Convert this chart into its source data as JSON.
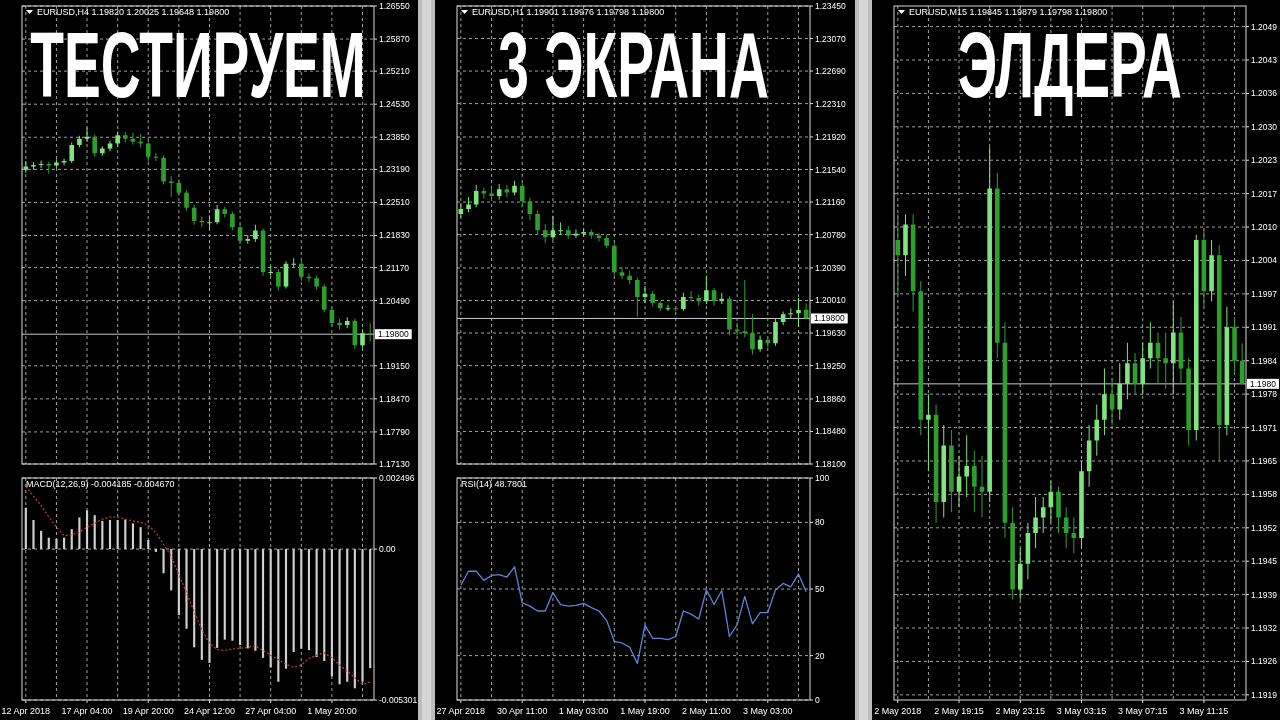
{
  "chart_data": [
    {
      "type": "candlestick",
      "title": "EURUSD,H4 1.19820 1.20025 1.19648 1.19800",
      "annotations": [
        "ТЕСТИРУЕМ"
      ],
      "categories": [
        null,
        null,
        null,
        null,
        null,
        null,
        null,
        null,
        null,
        null,
        null,
        null,
        null,
        null,
        null,
        null,
        null,
        null,
        null,
        null,
        null,
        null,
        null,
        null,
        null,
        null,
        null,
        null,
        null,
        null,
        null,
        null,
        null,
        null,
        null,
        null,
        null,
        null,
        null,
        null,
        null,
        null,
        null,
        null,
        null,
        null
      ],
      "ohlc": [
        [
          1.2318,
          1.2336,
          1.2312,
          1.2325
        ],
        [
          1.2325,
          1.2334,
          1.2318,
          1.2328
        ],
        [
          1.2328,
          1.2337,
          1.2322,
          1.233
        ],
        [
          1.233,
          1.2335,
          1.231,
          1.2327
        ],
        [
          1.2327,
          1.234,
          1.2322,
          1.2333
        ],
        [
          1.2333,
          1.2341,
          1.2327,
          1.2336
        ],
        [
          1.2336,
          1.2374,
          1.2332,
          1.2369
        ],
        [
          1.2369,
          1.2388,
          1.2364,
          1.2382
        ],
        [
          1.2382,
          1.2405,
          1.2376,
          1.2386
        ],
        [
          1.2386,
          1.239,
          1.2345,
          1.2352
        ],
        [
          1.2352,
          1.2366,
          1.2347,
          1.2362
        ],
        [
          1.2362,
          1.2378,
          1.2356,
          1.2372
        ],
        [
          1.2372,
          1.2397,
          1.2366,
          1.2389
        ],
        [
          1.2389,
          1.2396,
          1.2375,
          1.2382
        ],
        [
          1.2382,
          1.2395,
          1.237,
          1.2376
        ],
        [
          1.2376,
          1.2392,
          1.2364,
          1.2372
        ],
        [
          1.2372,
          1.2378,
          1.2335,
          1.2345
        ],
        [
          1.2345,
          1.2352,
          1.2336,
          1.2343
        ],
        [
          1.2343,
          1.2348,
          1.2288,
          1.2294
        ],
        [
          1.2294,
          1.2305,
          1.2262,
          1.2291
        ],
        [
          1.2291,
          1.2298,
          1.2265,
          1.2271
        ],
        [
          1.2271,
          1.2276,
          1.2234,
          1.224
        ],
        [
          1.224,
          1.2246,
          1.2205,
          1.2213
        ],
        [
          1.2213,
          1.2222,
          1.22,
          1.221
        ],
        [
          1.221,
          1.2224,
          1.2198,
          1.221
        ],
        [
          1.221,
          1.2246,
          1.2206,
          1.2237
        ],
        [
          1.2237,
          1.2242,
          1.222,
          1.2227
        ],
        [
          1.2227,
          1.2232,
          1.2194,
          1.22
        ],
        [
          1.22,
          1.2206,
          1.2165,
          1.2172
        ],
        [
          1.2172,
          1.2184,
          1.2166,
          1.2176
        ],
        [
          1.2176,
          1.2205,
          1.217,
          1.2193
        ],
        [
          1.2193,
          1.2198,
          1.21,
          1.2108
        ],
        [
          1.2108,
          1.212,
          1.21,
          1.2108
        ],
        [
          1.2108,
          1.2114,
          1.207,
          1.2078
        ],
        [
          1.2078,
          1.213,
          1.2074,
          1.2125
        ],
        [
          1.2125,
          1.2136,
          1.2118,
          1.2125
        ],
        [
          1.2125,
          1.2131,
          1.209,
          1.2098
        ],
        [
          1.2098,
          1.2105,
          1.2088,
          1.2095
        ],
        [
          1.2095,
          1.21,
          1.2072,
          1.2078
        ],
        [
          1.2078,
          1.2082,
          1.2025,
          1.203
        ],
        [
          1.203,
          1.2036,
          1.1996,
          1.2003
        ],
        [
          1.2003,
          1.2012,
          1.199,
          1.1999
        ],
        [
          1.1999,
          1.2015,
          1.1992,
          1.2007
        ],
        [
          1.2007,
          1.2012,
          1.195,
          1.1957
        ],
        [
          1.1957,
          1.199,
          1.1952,
          1.1982
        ],
        [
          1.1982,
          1.20025,
          1.19648,
          1.198
        ]
      ],
      "colors": [
        "#7fe37f",
        "#7fe37f",
        "#7fe37f",
        "#2e9e2e",
        "#7fe37f",
        "#7fe37f",
        "#7fe37f",
        "#7fe37f",
        "#7fe37f",
        "#2e9e2e",
        "#7fe37f",
        "#7fe37f",
        "#7fe37f",
        "#2e9e2e",
        "#2e9e2e",
        "#2e9e2e",
        "#2e9e2e",
        "#2e9e2e",
        "#2e9e2e",
        "#2e9e2e",
        "#2e9e2e",
        "#2e9e2e",
        "#2e9e2e",
        "#2e9e2e",
        "#7fe37f",
        "#7fe37f",
        "#2e9e2e",
        "#2e9e2e",
        "#2e9e2e",
        "#7fe37f",
        "#7fe37f",
        "#2e9e2e",
        "#7fe37f",
        "#2e9e2e",
        "#7fe37f",
        "#7fe37f",
        "#2e9e2e",
        "#2e9e2e",
        "#2e9e2e",
        "#2e9e2e",
        "#2e9e2e",
        "#2e9e2e",
        "#7fe37f",
        "#2e9e2e",
        "#7fe37f",
        "#2e9e2e"
      ],
      "ylim": [
        1.1713,
        1.2655
      ],
      "yticks": [
        {
          "value": 1.1713,
          "label": "1.17130"
        },
        {
          "value": 1.1779,
          "label": "1.17790"
        },
        {
          "value": 1.1847,
          "label": "1.18470"
        },
        {
          "value": 1.1915,
          "label": "1.19150"
        },
        {
          "value": 1.2049,
          "label": "1.20490"
        },
        {
          "value": 1.2117,
          "label": "1.21170"
        },
        {
          "value": 1.2183,
          "label": "1.21830"
        },
        {
          "value": 1.2251,
          "label": "1.22510"
        },
        {
          "value": 1.2319,
          "label": "1.23190"
        },
        {
          "value": 1.2385,
          "label": "1.23850"
        },
        {
          "value": 1.2453,
          "label": "1.24530"
        },
        {
          "value": 1.2521,
          "label": "1.25210"
        },
        {
          "value": 1.2587,
          "label": "1.25870"
        },
        {
          "value": 1.2655,
          "label": "1.26550"
        }
      ],
      "grid": true,
      "tick_labels": "y",
      "ref_lines": [
        {
          "axis": "y",
          "value": 1.198,
          "label": "1.19800"
        }
      ]
    },
    {
      "type": "bar",
      "title": "MACD(12,26,9) -0.004185 -0.004670",
      "categories": [
        "12 Apr 2018",
        null,
        null,
        null,
        null,
        null,
        null,
        null,
        "17 Apr 04:00",
        null,
        null,
        null,
        null,
        null,
        null,
        null,
        "19 Apr 20:00",
        null,
        null,
        null,
        null,
        null,
        null,
        null,
        "24 Apr 12:00",
        null,
        null,
        null,
        null,
        null,
        null,
        null,
        "27 Apr 04:00",
        null,
        null,
        null,
        null,
        null,
        null,
        null,
        "1 May 20:00",
        null,
        null,
        null,
        null,
        null
      ],
      "series": [
        {
          "type": "bar",
          "color": "#d0d0d0",
          "values": [
            0.00145,
            0.00102,
            0.00064,
            0.0004,
            0.00036,
            0.0004,
            0.0007,
            0.00111,
            0.00136,
            0.00119,
            0.00099,
            0.00102,
            0.00102,
            0.00104,
            0.0009,
            0.00077,
            0.00032,
            -0.0001,
            -0.00085,
            -0.00145,
            -0.00232,
            -0.0028,
            -0.00345,
            -0.00389,
            -0.004,
            -0.00347,
            -0.00318,
            -0.00322,
            -0.00337,
            -0.00349,
            -0.00357,
            -0.00382,
            -0.00416,
            -0.00466,
            -0.0042,
            -0.00362,
            -0.0035,
            -0.00355,
            -0.00379,
            -0.00393,
            -0.00447,
            -0.00475,
            -0.00466,
            -0.00489,
            -0.00466,
            -0.004185
          ]
        },
        {
          "type": "line",
          "color": "#c0392b",
          "line_style": "dotted",
          "values": [
            0.0022,
            0.00186,
            0.00153,
            0.00113,
            0.00077,
            0.00047,
            0.0005,
            0.00059,
            0.00077,
            0.0009,
            0.00105,
            0.00112,
            0.00112,
            0.00105,
            0.00099,
            0.00094,
            0.00084,
            0.00057,
            0.00017,
            -0.00025,
            -0.0009,
            -0.00153,
            -0.0022,
            -0.00283,
            -0.0033,
            -0.00353,
            -0.00356,
            -0.00351,
            -0.00348,
            -0.00345,
            -0.0034,
            -0.00356,
            -0.00373,
            -0.00388,
            -0.00405,
            -0.00415,
            -0.00407,
            -0.00384,
            -0.00373,
            -0.00364,
            -0.00382,
            -0.00407,
            -0.00429,
            -0.00452,
            -0.00475,
            -0.00467
          ]
        }
      ],
      "ylim": [
        -0.005301,
        0.002496
      ],
      "yticks": [
        -0.005301,
        {
          "value": 0,
          "label": "0.00"
        },
        0.002496
      ],
      "grid": true
    },
    {
      "type": "candlestick",
      "title": "EURUSD,H1 1.19901 1.19976 1.19798 1.19800",
      "annotations": [
        "3 ЭКРАНА"
      ],
      "categories": [
        null,
        null,
        null,
        null,
        null,
        null,
        null,
        null,
        null,
        null,
        null,
        null,
        null,
        null,
        null,
        null,
        null,
        null,
        null,
        null,
        null,
        null,
        null,
        null,
        null,
        null,
        null,
        null,
        null,
        null,
        null,
        null,
        null,
        null,
        null,
        null,
        null,
        null,
        null,
        null,
        null,
        null,
        null,
        null,
        null,
        null
      ],
      "ohlc": [
        [
          1.2102,
          1.2115,
          1.2098,
          1.2108
        ],
        [
          1.2108,
          1.2122,
          1.2104,
          1.2113
        ],
        [
          1.2113,
          1.2136,
          1.211,
          1.2129
        ],
        [
          1.2129,
          1.2133,
          1.212,
          1.2126
        ],
        [
          1.2126,
          1.2132,
          1.2118,
          1.2123
        ],
        [
          1.2123,
          1.2137,
          1.2119,
          1.2131
        ],
        [
          1.2131,
          1.2136,
          1.2122,
          1.2127
        ],
        [
          1.2127,
          1.2141,
          1.2124,
          1.2135
        ],
        [
          1.2135,
          1.2138,
          1.211,
          1.2117
        ],
        [
          1.2117,
          1.2121,
          1.2095,
          1.2102
        ],
        [
          1.2102,
          1.2106,
          1.2078,
          1.2083
        ],
        [
          1.2083,
          1.209,
          1.2068,
          1.2075
        ],
        [
          1.2075,
          1.21,
          1.2072,
          1.2083
        ],
        [
          1.2083,
          1.2092,
          1.2078,
          1.2083
        ],
        [
          1.2083,
          1.2088,
          1.2073,
          1.2077
        ],
        [
          1.2077,
          1.2084,
          1.2074,
          1.2079
        ],
        [
          1.2079,
          1.2085,
          1.2076,
          1.2081
        ],
        [
          1.2081,
          1.2084,
          1.2073,
          1.2077
        ],
        [
          1.2077,
          1.208,
          1.207,
          1.2074
        ],
        [
          1.2074,
          1.2078,
          1.2062,
          1.2065
        ],
        [
          1.2065,
          1.2068,
          1.203,
          1.2034
        ],
        [
          1.2034,
          1.204,
          1.2026,
          1.203
        ],
        [
          1.203,
          1.2036,
          1.202,
          1.2025
        ],
        [
          1.2025,
          1.2028,
          1.1982,
          1.2005
        ],
        [
          1.2005,
          1.2018,
          1.1998,
          1.2009
        ],
        [
          1.2009,
          1.2012,
          1.1994,
          1.1998
        ],
        [
          1.1998,
          1.2,
          1.1989,
          1.1992
        ],
        [
          1.1992,
          1.1996,
          1.1989,
          1.1992
        ],
        [
          1.1992,
          1.1995,
          1.1988,
          1.1991
        ],
        [
          1.1991,
          1.201,
          1.1989,
          1.2005
        ],
        [
          1.2005,
          1.2012,
          1.2,
          1.2004
        ],
        [
          1.2004,
          1.2008,
          1.1995,
          1.2
        ],
        [
          1.2,
          1.203,
          1.1997,
          1.2013
        ],
        [
          1.2013,
          1.2016,
          1.1995,
          1.2
        ],
        [
          1.2,
          1.201,
          1.1997,
          1.2003
        ],
        [
          1.2003,
          1.2006,
          1.196,
          1.1967
        ],
        [
          1.1967,
          1.1975,
          1.196,
          1.1965
        ],
        [
          1.1965,
          1.2025,
          1.1958,
          1.1963
        ],
        [
          1.1963,
          1.1985,
          1.1938,
          1.1944
        ],
        [
          1.1944,
          1.196,
          1.1941,
          1.1955
        ],
        [
          1.1955,
          1.1958,
          1.1946,
          1.1951
        ],
        [
          1.1951,
          1.198,
          1.1948,
          1.1976
        ],
        [
          1.1976,
          1.1988,
          1.1972,
          1.1985
        ],
        [
          1.1985,
          1.1992,
          1.198,
          1.1986
        ],
        [
          1.1986,
          1.2004,
          1.197,
          1.199
        ],
        [
          1.19901,
          1.19976,
          1.19798,
          1.198
        ]
      ],
      "colors": [
        "#7fe37f",
        "#7fe37f",
        "#7fe37f",
        "#2e9e2e",
        "#2e9e2e",
        "#7fe37f",
        "#2e9e2e",
        "#7fe37f",
        "#2e9e2e",
        "#2e9e2e",
        "#2e9e2e",
        "#2e9e2e",
        "#7fe37f",
        "#7fe37f",
        "#2e9e2e",
        "#7fe37f",
        "#7fe37f",
        "#2e9e2e",
        "#2e9e2e",
        "#2e9e2e",
        "#2e9e2e",
        "#2e9e2e",
        "#2e9e2e",
        "#2e9e2e",
        "#7fe37f",
        "#2e9e2e",
        "#2e9e2e",
        "#7fe37f",
        "#2e9e2e",
        "#7fe37f",
        "#2e9e2e",
        "#2e9e2e",
        "#7fe37f",
        "#2e9e2e",
        "#7fe37f",
        "#2e9e2e",
        "#2e9e2e",
        "#2e9e2e",
        "#2e9e2e",
        "#7fe37f",
        "#2e9e2e",
        "#7fe37f",
        "#7fe37f",
        "#7fe37f",
        "#7fe37f",
        "#2e9e2e"
      ],
      "ylim": [
        1.181,
        1.2345
      ],
      "yticks": [
        {
          "value": 1.181,
          "label": "1.18100"
        },
        {
          "value": 1.1848,
          "label": "1.18480"
        },
        {
          "value": 1.1886,
          "label": "1.18860"
        },
        {
          "value": 1.1925,
          "label": "1.19250"
        },
        {
          "value": 1.1963,
          "label": "1.19630"
        },
        {
          "value": 1.2001,
          "label": "1.20010"
        },
        {
          "value": 1.2039,
          "label": "1.20390"
        },
        {
          "value": 1.2078,
          "label": "1.20780"
        },
        {
          "value": 1.2116,
          "label": "1.21160"
        },
        {
          "value": 1.2154,
          "label": "1.21540"
        },
        {
          "value": 1.2192,
          "label": "1.21920"
        },
        {
          "value": 1.2231,
          "label": "1.22310"
        },
        {
          "value": 1.2269,
          "label": "1.22690"
        },
        {
          "value": 1.2307,
          "label": "1.23070"
        },
        {
          "value": 1.2345,
          "label": "1.23450"
        }
      ],
      "grid": true,
      "tick_labels": "y",
      "ref_lines": [
        {
          "axis": "y",
          "value": 1.198,
          "label": "1.19800"
        }
      ]
    },
    {
      "type": "line",
      "title": "RSI(14) 48.7801",
      "categories": [
        "27 Apr 2018",
        null,
        null,
        null,
        null,
        null,
        null,
        null,
        "30 Apr 11:00",
        null,
        null,
        null,
        null,
        null,
        null,
        null,
        "1 May 03:00",
        null,
        null,
        null,
        null,
        null,
        null,
        null,
        "1 May 19:00",
        null,
        null,
        null,
        null,
        null,
        null,
        null,
        "2 May 11:00",
        null,
        null,
        null,
        null,
        null,
        null,
        null,
        "3 May 03:00",
        null,
        null,
        null,
        null,
        null
      ],
      "values": [
        51.7,
        58,
        58,
        53.9,
        56.1,
        56.5,
        55.4,
        60,
        43.8,
        42.3,
        40.1,
        40.1,
        48.4,
        43,
        42.3,
        42.6,
        43.5,
        41.6,
        40.1,
        35.8,
        26.4,
        25.7,
        23.8,
        16.5,
        33.6,
        27.8,
        27.8,
        27.2,
        28.6,
        40.1,
        38.7,
        36.5,
        49.6,
        43,
        49.3,
        28.6,
        33.9,
        46.7,
        34.3,
        39.4,
        39.4,
        49.6,
        52.5,
        51,
        56.8,
        48.8
      ],
      "color": "#5a86d8",
      "ylim": [
        0,
        100
      ],
      "yticks": [
        0,
        20,
        50,
        80,
        100
      ],
      "grid": true
    },
    {
      "type": "candlestick",
      "title": "EURUSD,M15 1.19845 1.19879 1.19798 1.19800",
      "annotations": [
        "ЭЛДЕРА"
      ],
      "categories": [
        "2 May 2018",
        null,
        null,
        null,
        null,
        null,
        null,
        null,
        "2 May 19:15",
        null,
        null,
        null,
        null,
        null,
        null,
        null,
        "2 May 23:15",
        null,
        null,
        null,
        null,
        null,
        null,
        null,
        "3 May 03:15",
        null,
        null,
        null,
        null,
        null,
        null,
        null,
        "3 May 07:15",
        null,
        null,
        null,
        null,
        null,
        null,
        null,
        "3 May 11:15",
        null,
        null,
        null,
        null,
        null
      ],
      "ohlc": [
        [
          1.2008,
          1.2013,
          1.1997,
          1.2005
        ],
        [
          1.2005,
          1.2013,
          1.2001,
          1.2011
        ],
        [
          1.2011,
          1.2013,
          1.1994,
          1.1998
        ],
        [
          1.1998,
          1.2,
          1.197,
          1.1973
        ],
        [
          1.1973,
          1.1978,
          1.1963,
          1.1974
        ],
        [
          1.1974,
          1.1976,
          1.1953,
          1.1957
        ],
        [
          1.1957,
          1.1972,
          1.1954,
          1.1968
        ],
        [
          1.1968,
          1.1971,
          1.1955,
          1.1959
        ],
        [
          1.1959,
          1.1966,
          1.1956,
          1.1962
        ],
        [
          1.1962,
          1.197,
          1.1958,
          1.1964
        ],
        [
          1.1964,
          1.1967,
          1.1955,
          1.196
        ],
        [
          1.196,
          1.1966,
          1.1954,
          1.1959
        ],
        [
          1.1959,
          1.2026,
          1.1957,
          1.2018
        ],
        [
          1.2018,
          1.2021,
          1.1985,
          1.1988
        ],
        [
          1.1988,
          1.1992,
          1.195,
          1.1953
        ],
        [
          1.1953,
          1.1956,
          1.1938,
          1.194
        ],
        [
          1.194,
          1.1948,
          1.1938,
          1.1945
        ],
        [
          1.1945,
          1.1953,
          1.1942,
          1.1951
        ],
        [
          1.1951,
          1.1958,
          1.1948,
          1.1954
        ],
        [
          1.1954,
          1.1958,
          1.1951,
          1.1956
        ],
        [
          1.1956,
          1.1961,
          1.1953,
          1.1959
        ],
        [
          1.1959,
          1.196,
          1.1951,
          1.1954
        ],
        [
          1.1954,
          1.1956,
          1.1948,
          1.1951
        ],
        [
          1.1951,
          1.1954,
          1.1947,
          1.195
        ],
        [
          1.195,
          1.1965,
          1.1948,
          1.1963
        ],
        [
          1.1963,
          1.1972,
          1.196,
          1.1969
        ],
        [
          1.1969,
          1.1976,
          1.1966,
          1.1973
        ],
        [
          1.1973,
          1.1983,
          1.197,
          1.1978
        ],
        [
          1.1978,
          1.1981,
          1.1972,
          1.1975
        ],
        [
          1.1975,
          1.1984,
          1.1973,
          1.198
        ],
        [
          1.198,
          1.1988,
          1.1977,
          1.1984
        ],
        [
          1.1984,
          1.1986,
          1.1978,
          1.198
        ],
        [
          1.198,
          1.1988,
          1.1978,
          1.1985
        ],
        [
          1.1985,
          1.1992,
          1.1983,
          1.1988
        ],
        [
          1.1988,
          1.199,
          1.198,
          1.1985
        ],
        [
          1.1985,
          1.199,
          1.1979,
          1.1984
        ],
        [
          1.1984,
          1.1996,
          1.1978,
          1.199
        ],
        [
          1.199,
          1.1993,
          1.198,
          1.1983
        ],
        [
          1.1983,
          1.1985,
          1.1968,
          1.1971
        ],
        [
          1.1971,
          1.2009,
          1.1969,
          1.2008
        ],
        [
          1.2008,
          1.201,
          1.1995,
          1.1998
        ],
        [
          1.1998,
          1.2008,
          1.1996,
          1.2005
        ],
        [
          1.2005,
          1.2007,
          1.1965,
          1.1972
        ],
        [
          1.1972,
          1.1995,
          1.197,
          1.1991
        ],
        [
          1.1991,
          1.1993,
          1.1982,
          1.19845
        ],
        [
          1.19845,
          1.19879,
          1.19798,
          1.198
        ]
      ],
      "colors": [
        "#2e9e2e",
        "#7fe37f",
        "#2e9e2e",
        "#2e9e2e",
        "#7fe37f",
        "#2e9e2e",
        "#7fe37f",
        "#2e9e2e",
        "#7fe37f",
        "#7fe37f",
        "#2e9e2e",
        "#2e9e2e",
        "#7fe37f",
        "#2e9e2e",
        "#2e9e2e",
        "#2e9e2e",
        "#7fe37f",
        "#7fe37f",
        "#7fe37f",
        "#7fe37f",
        "#7fe37f",
        "#2e9e2e",
        "#2e9e2e",
        "#2e9e2e",
        "#7fe37f",
        "#7fe37f",
        "#7fe37f",
        "#7fe37f",
        "#2e9e2e",
        "#7fe37f",
        "#7fe37f",
        "#2e9e2e",
        "#7fe37f",
        "#7fe37f",
        "#2e9e2e",
        "#2e9e2e",
        "#7fe37f",
        "#2e9e2e",
        "#2e9e2e",
        "#7fe37f",
        "#2e9e2e",
        "#7fe37f",
        "#2e9e2e",
        "#7fe37f",
        "#2e9e2e",
        "#2e9e2e"
      ],
      "ylim": [
        1.19185,
        1.20535
      ],
      "yticks": [
        {
          "value": 1.19195,
          "label": "1.1919"
        },
        1.1926,
        {
          "value": 1.19325,
          "label": "1.1932"
        },
        1.1939,
        {
          "value": 1.19455,
          "label": "1.1945"
        },
        1.1952,
        {
          "value": 1.19585,
          "label": "1.1958"
        },
        1.1965,
        {
          "value": 1.19715,
          "label": "1.1971"
        },
        1.1978,
        {
          "value": 1.19845,
          "label": "1.1984"
        },
        1.1991,
        {
          "value": 1.19975,
          "label": "1.1997"
        },
        1.2004,
        {
          "value": 1.20105,
          "label": "1.2010"
        },
        1.2017,
        {
          "value": 1.20235,
          "label": "1.2023"
        },
        {
          "value": 1.203,
          "label": "1.2030"
        },
        {
          "value": 1.20365,
          "label": "1.2036"
        },
        1.2043,
        {
          "value": 1.20495,
          "label": "1.2049"
        }
      ],
      "grid": true,
      "ref_lines": [
        {
          "axis": "y",
          "value": 1.198,
          "label": "1.1980"
        }
      ]
    }
  ]
}
